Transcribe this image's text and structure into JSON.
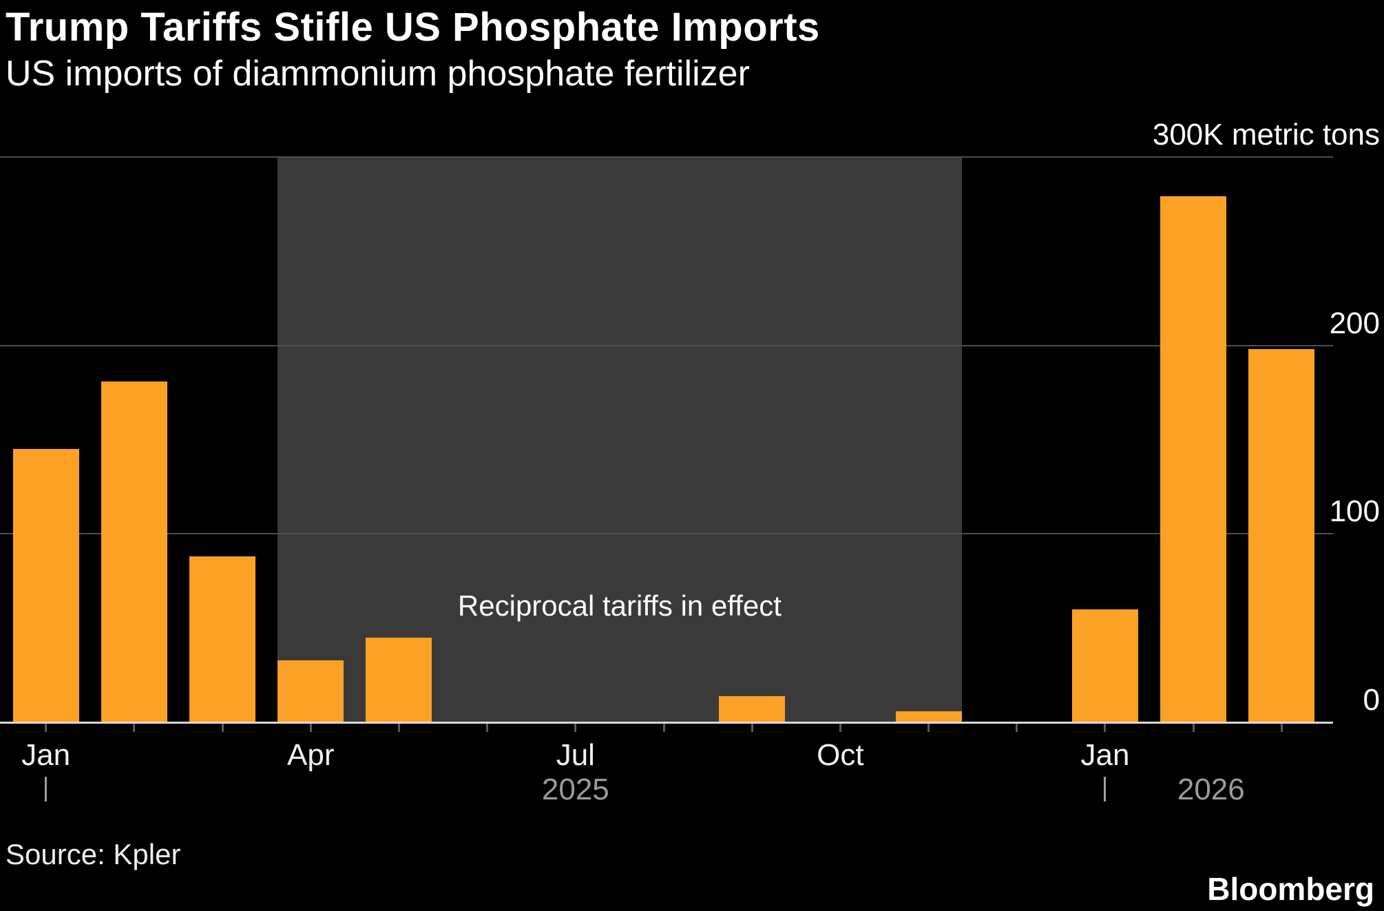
{
  "header": {
    "title": "Trump Tariffs Stifle US Phosphate Imports",
    "subtitle": "US imports of diammonium phosphate fertilizer"
  },
  "chart_data": {
    "type": "bar",
    "title": "Trump Tariffs Stifle US Phosphate Imports",
    "subtitle": "US imports of diammonium phosphate fertilizer",
    "unit": "thousand metric tons",
    "ylim": [
      0,
      300
    ],
    "grid": "horizontal",
    "legend": false,
    "yticks": [
      {
        "value": 0,
        "label": "0"
      },
      {
        "value": 100,
        "label": "100"
      },
      {
        "value": 200,
        "label": "200"
      },
      {
        "value": 300,
        "label": "300K metric tons"
      }
    ],
    "categories": [
      "Jan 2025",
      "Feb 2025",
      "Mar 2025",
      "Apr 2025",
      "May 2025",
      "Jun 2025",
      "Jul 2025",
      "Aug 2025",
      "Sep 2025",
      "Oct 2025",
      "Nov 2025",
      "Dec 2025",
      "Jan 2026",
      "Feb 2026",
      "Mar 2026"
    ],
    "values": [
      145,
      181,
      88,
      33,
      45,
      0,
      0,
      0,
      14,
      0,
      6,
      0,
      60,
      279,
      198
    ],
    "bar_color": "#FBA226",
    "x_tick_labels": [
      {
        "index": 0,
        "label": "Jan"
      },
      {
        "index": 3,
        "label": "Apr"
      },
      {
        "index": 6,
        "label": "Jul"
      },
      {
        "index": 9,
        "label": "Oct"
      },
      {
        "index": 12,
        "label": "Jan"
      }
    ],
    "year_markers": [
      {
        "tick_index": 0,
        "year": "2025",
        "label_index": 6.0
      },
      {
        "tick_index": 12,
        "year": "2026",
        "label_index": 13.2
      }
    ],
    "annotation": {
      "label": "Reciprocal tariffs in effect",
      "start_index": 2.625,
      "end_index": 10.375,
      "fill_color": "#3A3A3A"
    }
  },
  "colors": {
    "background": "#000000",
    "bar": "#FBA226",
    "shade": "#3A3A3A",
    "gridline": "#4F4F4F",
    "baseline": "#D9D9D9",
    "text_primary": "#FFFFFF",
    "text_muted": "#9B9B9B"
  },
  "footer": {
    "source": "Source: Kpler",
    "brand": "Bloomberg"
  }
}
